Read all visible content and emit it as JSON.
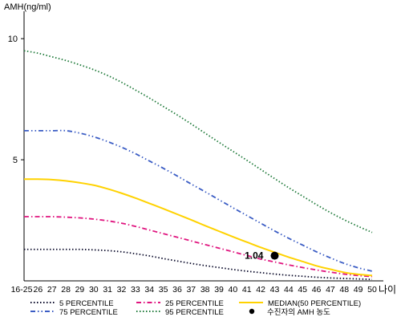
{
  "chart_data": {
    "type": "line",
    "title": "",
    "ylabel": "AMH(ng/ml)",
    "xlabel": "나이",
    "ylim": [
      0,
      11
    ],
    "yticks": [
      5,
      10
    ],
    "grid": false,
    "legend_position": "bottom",
    "categories": [
      "16-25",
      "26",
      "27",
      "28",
      "29",
      "30",
      "31",
      "32",
      "33",
      "34",
      "35",
      "36",
      "37",
      "38",
      "39",
      "40",
      "41",
      "42",
      "43",
      "44",
      "45",
      "46",
      "47",
      "48",
      "49",
      "50"
    ],
    "series": [
      {
        "name": "5 PERCENTILE",
        "style": "dotted",
        "color": "#0a0a2a",
        "values": [
          1.3,
          1.3,
          1.3,
          1.3,
          1.3,
          1.28,
          1.25,
          1.2,
          1.12,
          1.03,
          0.92,
          0.82,
          0.72,
          0.63,
          0.55,
          0.47,
          0.4,
          0.34,
          0.28,
          0.23,
          0.19,
          0.15,
          0.12,
          0.1,
          0.08,
          0.06
        ]
      },
      {
        "name": "25 PERCENTILE",
        "style": "dashdot",
        "color": "#e0157f",
        "values": [
          2.65,
          2.65,
          2.65,
          2.63,
          2.6,
          2.55,
          2.48,
          2.38,
          2.25,
          2.1,
          1.95,
          1.8,
          1.65,
          1.5,
          1.35,
          1.2,
          1.05,
          0.9,
          0.78,
          0.66,
          0.55,
          0.45,
          0.36,
          0.28,
          0.22,
          0.18
        ]
      },
      {
        "name": "MEDIAN(50 PERCENTILE)",
        "style": "solid",
        "color": "#ffd200",
        "values": [
          4.2,
          4.2,
          4.18,
          4.13,
          4.05,
          3.95,
          3.8,
          3.62,
          3.42,
          3.2,
          2.98,
          2.75,
          2.52,
          2.28,
          2.05,
          1.82,
          1.6,
          1.38,
          1.18,
          0.98,
          0.8,
          0.62,
          0.48,
          0.35,
          0.27,
          0.22
        ]
      },
      {
        "name": "75 PERCENTILE",
        "style": "dashdotdot",
        "color": "#3a5cc4",
        "values": [
          6.2,
          6.2,
          6.2,
          6.2,
          6.1,
          5.95,
          5.75,
          5.52,
          5.25,
          4.95,
          4.65,
          4.33,
          4.0,
          3.68,
          3.35,
          3.02,
          2.7,
          2.38,
          2.06,
          1.76,
          1.48,
          1.2,
          0.95,
          0.72,
          0.54,
          0.4
        ]
      },
      {
        "name": "95 PERCENTILE",
        "style": "dotted",
        "color": "#1f7a3a",
        "values": [
          9.5,
          9.4,
          9.25,
          9.1,
          8.92,
          8.72,
          8.48,
          8.2,
          7.88,
          7.55,
          7.2,
          6.85,
          6.48,
          6.1,
          5.72,
          5.35,
          4.98,
          4.6,
          4.22,
          3.85,
          3.5,
          3.15,
          2.82,
          2.52,
          2.25,
          2.0
        ]
      }
    ],
    "marker": {
      "name": "수진자의 AMH 농도",
      "label": "1.04",
      "x": "43",
      "y": 1.04,
      "color": "#000000"
    },
    "legend_order": [
      "5 PERCENTILE",
      "25 PERCENTILE",
      "MEDIAN(50 PERCENTILE)",
      "75 PERCENTILE",
      "95 PERCENTILE",
      "수진자의 AMH 농도"
    ]
  }
}
